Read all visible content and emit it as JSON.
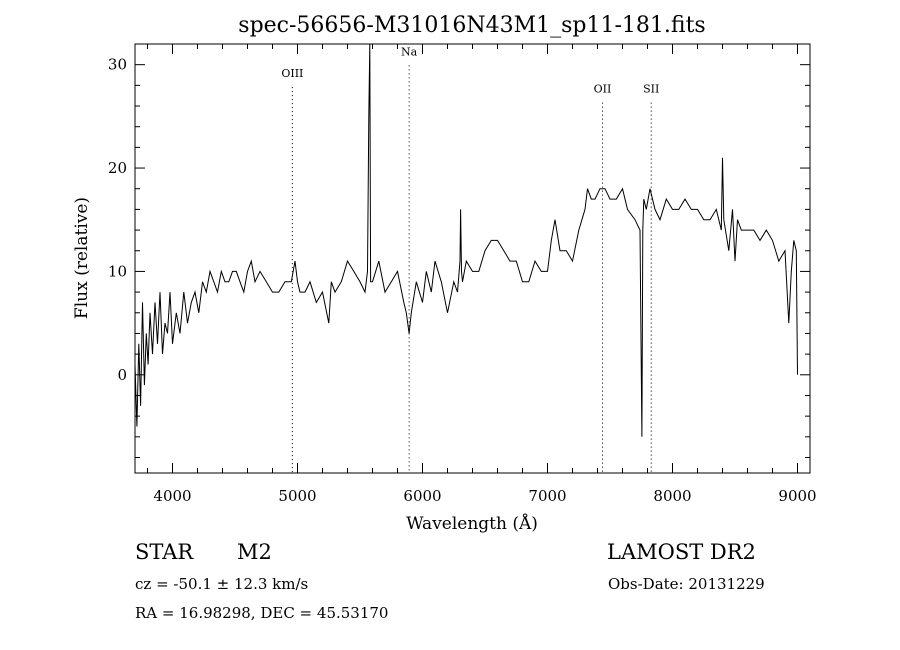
{
  "chart_data": {
    "type": "line",
    "title": "spec-56656-M31016N43M1_sp11-181.fits",
    "xlabel": "Wavelength (Å)",
    "ylabel": "Flux (relative)",
    "xlim": [
      3700,
      9100
    ],
    "ylim": [
      -9.5,
      32
    ],
    "x_ticks": [
      4000,
      5000,
      6000,
      7000,
      8000,
      9000
    ],
    "y_ticks": [
      0,
      10,
      20,
      30
    ],
    "grid": false,
    "line_color": "#000000",
    "series": [
      {
        "x": [
          3700,
          3715,
          3730,
          3745,
          3760,
          3775,
          3790,
          3805,
          3820,
          3840,
          3860,
          3880,
          3900,
          3920,
          3940,
          3960,
          3980,
          4000,
          4030,
          4060,
          4090,
          4120,
          4150,
          4180,
          4210,
          4240,
          4270,
          4300,
          4330,
          4360,
          4390,
          4420,
          4450,
          4480,
          4510,
          4540,
          4570,
          4600,
          4630,
          4660,
          4700,
          4750,
          4800,
          4850,
          4900,
          4950,
          4980,
          5000,
          5020,
          5060,
          5100,
          5150,
          5200,
          5250,
          5270,
          5300,
          5350,
          5400,
          5450,
          5500,
          5540,
          5560,
          5570,
          5578,
          5585,
          5600,
          5650,
          5700,
          5750,
          5800,
          5850,
          5870,
          5893,
          5910,
          5950,
          6000,
          6030,
          6070,
          6100,
          6150,
          6200,
          6250,
          6280,
          6300,
          6305,
          6312,
          6320,
          6350,
          6400,
          6450,
          6500,
          6550,
          6600,
          6650,
          6700,
          6750,
          6800,
          6850,
          6900,
          6950,
          7000,
          7030,
          7060,
          7100,
          7150,
          7200,
          7250,
          7300,
          7320,
          7350,
          7380,
          7420,
          7460,
          7500,
          7550,
          7600,
          7640,
          7700,
          7740,
          7755,
          7762,
          7770,
          7790,
          7820,
          7860,
          7900,
          7950,
          8000,
          8050,
          8100,
          8150,
          8200,
          8250,
          8300,
          8350,
          8390,
          8400,
          8410,
          8450,
          8480,
          8500,
          8520,
          8550,
          8600,
          8650,
          8700,
          8750,
          8800,
          8850,
          8900,
          8930,
          8950,
          8970,
          8990,
          9000
        ],
        "y": [
          1,
          -5,
          3,
          -3,
          7,
          -1,
          4,
          1,
          6,
          2,
          7,
          3,
          8,
          2,
          5,
          4,
          8,
          3,
          6,
          4,
          8,
          5,
          7,
          8,
          6,
          9,
          8,
          10,
          9,
          8,
          10,
          9,
          9,
          10,
          10,
          9,
          8,
          10,
          11,
          9,
          10,
          9,
          8,
          8,
          9,
          9,
          11,
          9,
          8,
          8,
          9,
          7,
          8,
          5,
          9,
          8,
          9,
          11,
          10,
          9,
          8,
          10,
          25,
          32,
          9,
          9,
          11,
          8,
          9,
          10,
          7,
          6,
          4,
          6,
          9,
          7,
          10,
          8,
          11,
          9,
          6,
          9,
          8,
          11,
          16,
          10,
          9,
          11,
          10,
          10,
          12,
          13,
          13,
          12,
          11,
          11,
          9,
          9,
          11,
          10,
          10,
          13,
          15,
          12,
          12,
          11,
          14,
          16,
          18,
          17,
          17,
          18,
          18,
          17,
          17,
          18,
          16,
          15,
          14,
          -6,
          14,
          17,
          16,
          18,
          16,
          15,
          17,
          16,
          16,
          17,
          16,
          16,
          15,
          15,
          16,
          14,
          21,
          15,
          12,
          16,
          11,
          15,
          14,
          14,
          14,
          13,
          14,
          13,
          11,
          12,
          5,
          10,
          13,
          12,
          0
        ]
      }
    ],
    "annotations": [
      {
        "label": "OIII",
        "x": 4959,
        "label_y": 28.8
      },
      {
        "label": "Na",
        "x": 5893,
        "label_y": 30.9
      },
      {
        "label": "OII",
        "x": 7440,
        "label_y": 27.3
      },
      {
        "label": "SII",
        "x": 7830,
        "label_y": 27.3
      }
    ]
  },
  "info": {
    "object_class": "STAR",
    "subclass": "M2",
    "survey": "LAMOST DR2",
    "cz": "cz = -50.1 ± 12.3 km/s",
    "obs_date": "Obs-Date: 20131229",
    "coords": "RA =  16.98298, DEC =  45.53170"
  }
}
